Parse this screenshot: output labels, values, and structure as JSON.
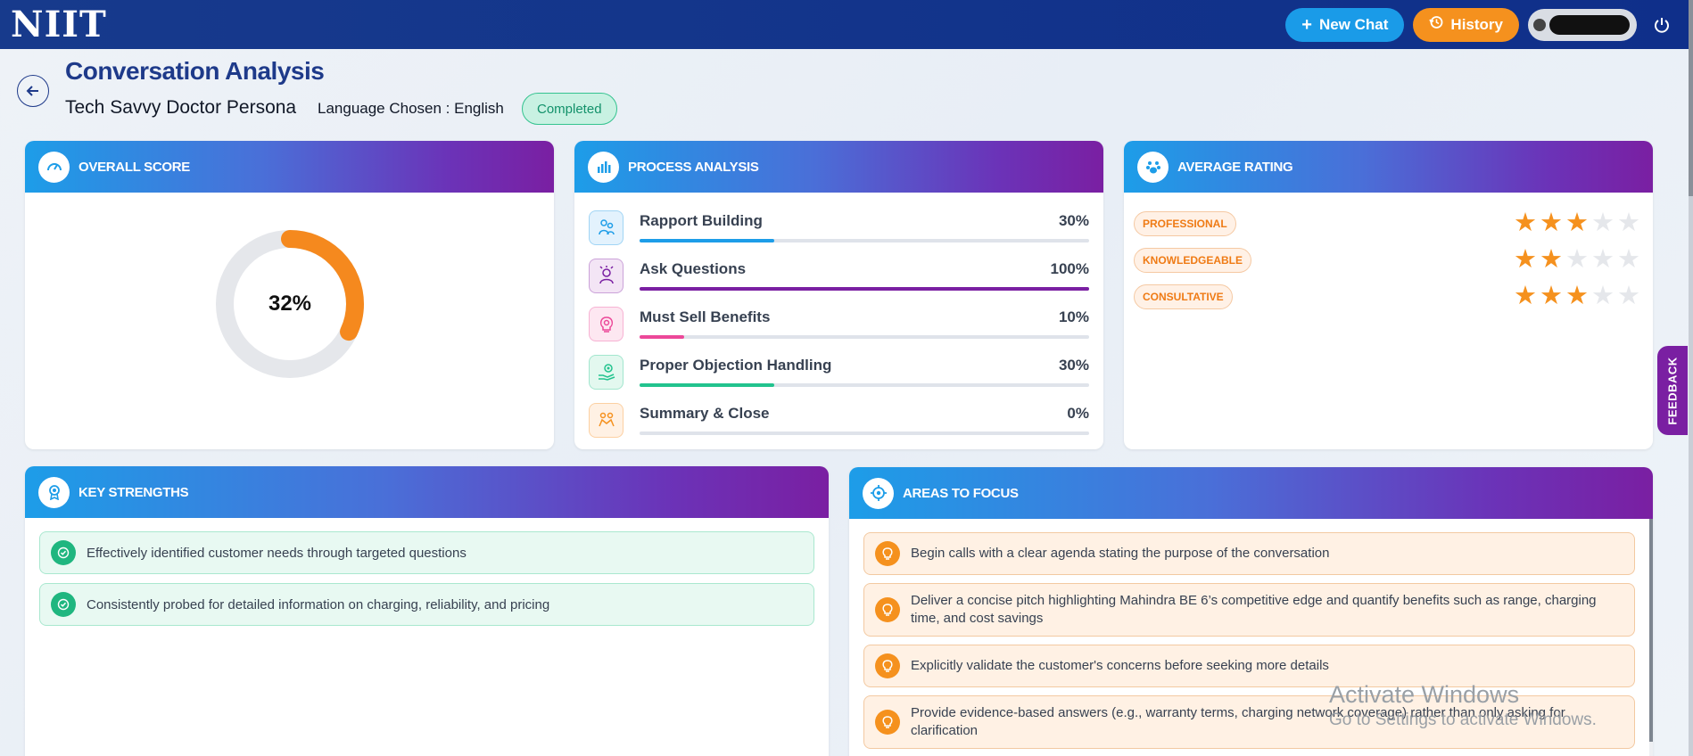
{
  "topbar": {
    "logo": "NIIT",
    "new_chat_label": "New Chat",
    "history_label": "History"
  },
  "header": {
    "title": "Conversation Analysis",
    "persona": "Tech Savvy Doctor Persona",
    "language": "Language Chosen : English",
    "status": "Completed"
  },
  "overall": {
    "title": "OVERALL SCORE",
    "score_label": "32%",
    "score_fraction": 0.32
  },
  "process": {
    "title": "PROCESS ANALYSIS",
    "items": [
      {
        "name": "Rapport Building",
        "value": "30%",
        "fraction": 0.3,
        "color": "#1d9de8",
        "icon": "handshake-people-icon"
      },
      {
        "name": "Ask Questions",
        "value": "100%",
        "fraction": 1.0,
        "color": "#7a1fa2",
        "icon": "question-person-icon"
      },
      {
        "name": "Must Sell Benefits",
        "value": "10%",
        "fraction": 0.1,
        "color": "#ec4899",
        "icon": "lightbulb-head-icon"
      },
      {
        "name": "Proper Objection Handling",
        "value": "30%",
        "fraction": 0.3,
        "color": "#22c38e",
        "icon": "hand-gear-icon"
      },
      {
        "name": "Summary & Close",
        "value": "0%",
        "fraction": 0.0,
        "color": "#f5911e",
        "icon": "deal-close-icon"
      }
    ]
  },
  "rating": {
    "title": "AVERAGE RATING",
    "items": [
      {
        "label": "PROFESSIONAL",
        "stars": 3,
        "max": 5
      },
      {
        "label": "KNOWLEDGEABLE",
        "stars": 2,
        "max": 5
      },
      {
        "label": "CONSULTATIVE",
        "stars": 3,
        "max": 5
      }
    ]
  },
  "feedback_tab": "FEEDBACK",
  "strengths": {
    "title": "KEY STRENGTHS",
    "items": [
      "Effectively identified customer needs through targeted questions",
      "Consistently probed for detailed information on charging, reliability, and pricing"
    ]
  },
  "focus": {
    "title": "AREAS TO FOCUS",
    "items": [
      "Begin calls with a clear agenda stating the purpose of the conversation",
      "Deliver a concise pitch highlighting Mahindra BE 6’s competitive edge and quantify benefits such as range, charging time, and cost savings",
      "Explicitly validate the customer's concerns before seeking more details",
      "Provide evidence-based answers (e.g., warranty terms, charging network coverage) rather than only asking for clarification"
    ]
  },
  "watermark": {
    "line1": "Activate Windows",
    "line2": "Go to Settings to activate Windows."
  },
  "colors": {
    "topbar": "#173a8c",
    "accent_blue": "#1a9be8",
    "accent_orange": "#f5911e",
    "accent_purple": "#7a1fa2",
    "success_green": "#1fb67f"
  }
}
